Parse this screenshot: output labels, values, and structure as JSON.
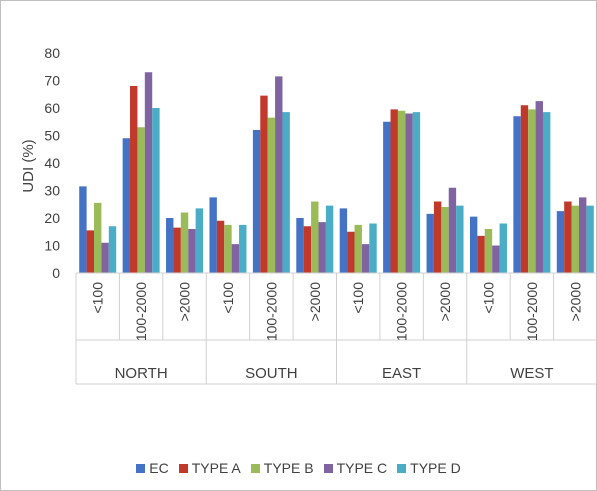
{
  "chart_data": {
    "type": "bar",
    "ylabel": "UDI (%)",
    "xlabel": "",
    "title": "",
    "ylim": [
      0,
      80
    ],
    "yticks": [
      0,
      10,
      20,
      30,
      40,
      50,
      60,
      70,
      80
    ],
    "grid": false,
    "legend_position": "bottom",
    "groups": [
      "NORTH",
      "SOUTH",
      "EAST",
      "WEST"
    ],
    "subcategories": [
      "<100",
      "100-2000",
      ">2000"
    ],
    "categories": [
      "NORTH <100",
      "NORTH 100-2000",
      "NORTH >2000",
      "SOUTH <100",
      "SOUTH 100-2000",
      "SOUTH >2000",
      "EAST <100",
      "EAST 100-2000",
      "EAST >2000",
      "WEST <100",
      "WEST 100-2000",
      "WEST >2000"
    ],
    "series": [
      {
        "name": "EC",
        "color": "#4472c4",
        "values": [
          31.5,
          49,
          20,
          27.5,
          52,
          20,
          23.5,
          55,
          21.5,
          20.5,
          57,
          22.5
        ]
      },
      {
        "name": "TYPE A",
        "color": "#c0392b",
        "values": [
          15.5,
          68,
          16.5,
          19,
          64.5,
          17,
          15,
          59.5,
          26,
          13.5,
          61,
          26
        ]
      },
      {
        "name": "TYPE B",
        "color": "#9bbb59",
        "values": [
          25.5,
          53,
          22,
          17.5,
          56.5,
          26,
          17.5,
          59,
          24,
          16,
          59.5,
          24.5
        ]
      },
      {
        "name": "TYPE C",
        "color": "#8064a2",
        "values": [
          11,
          73,
          16,
          10.5,
          71.5,
          18.5,
          10.5,
          58,
          31,
          10,
          62.5,
          27.5
        ]
      },
      {
        "name": "TYPE D",
        "color": "#4bacc6",
        "values": [
          17,
          60,
          23.5,
          17.5,
          58.5,
          24.5,
          18,
          58.5,
          24.5,
          18,
          58.5,
          24.5
        ]
      }
    ]
  }
}
